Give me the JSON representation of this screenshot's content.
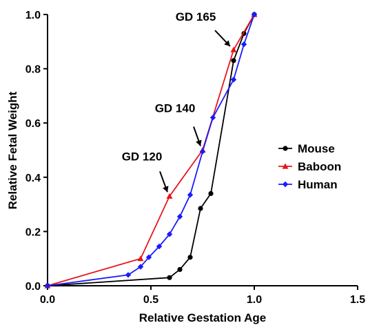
{
  "chart_data": {
    "type": "line",
    "title": "",
    "xlabel": "Relative Gestation Age",
    "ylabel": "Relative Fetal Weight",
    "xlim": [
      0,
      1.5
    ],
    "ylim": [
      0,
      1.0
    ],
    "x_ticks": [
      "0.0",
      "0.5",
      "1.0",
      "1.5"
    ],
    "y_ticks": [
      "0.0",
      "0.2",
      "0.4",
      "0.6",
      "0.8",
      "1.0"
    ],
    "grid": false,
    "legend_position": "right",
    "series": [
      {
        "name": "Mouse",
        "color": "#000000",
        "marker": "circle",
        "x": [
          0.0,
          0.59,
          0.64,
          0.69,
          0.74,
          0.79,
          0.9,
          0.95,
          1.0
        ],
        "y": [
          0.0,
          0.03,
          0.06,
          0.105,
          0.285,
          0.34,
          0.83,
          0.93,
          1.0
        ]
      },
      {
        "name": "Baboon",
        "color": "#e8141b",
        "marker": "triangle",
        "x": [
          0.0,
          0.45,
          0.59,
          0.75,
          0.9,
          1.0
        ],
        "y": [
          0.0,
          0.1,
          0.33,
          0.5,
          0.87,
          1.0
        ]
      },
      {
        "name": "Human",
        "color": "#1a1aff",
        "marker": "diamond",
        "x": [
          0.0,
          0.39,
          0.45,
          0.49,
          0.54,
          0.59,
          0.64,
          0.69,
          0.75,
          0.8,
          0.9,
          0.95,
          1.0
        ],
        "y": [
          0.0,
          0.04,
          0.07,
          0.105,
          0.145,
          0.19,
          0.255,
          0.335,
          0.495,
          0.62,
          0.76,
          0.89,
          1.0
        ]
      }
    ],
    "annotations": [
      {
        "text": "GD 120",
        "x": 0.59,
        "y": 0.33
      },
      {
        "text": "GD 140",
        "x": 0.75,
        "y": 0.5
      },
      {
        "text": "GD 165",
        "x": 0.9,
        "y": 0.87
      }
    ]
  }
}
